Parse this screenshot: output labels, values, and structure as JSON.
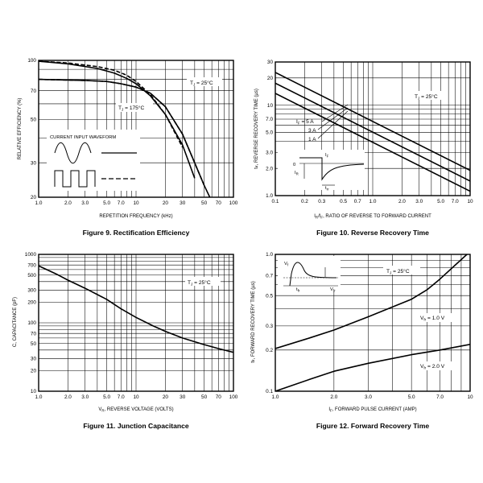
{
  "charts": [
    {
      "caption": "Figure 9. Rectification Efficiency",
      "chart_data": {
        "type": "line",
        "xlabel": "REPETITION FREQUENCY (kHz)",
        "ylabel": "RELATIVE EFFICIENCY (%)",
        "xscale": "log",
        "yscale": "log",
        "xlim": [
          1,
          100
        ],
        "ylim": [
          20,
          100
        ],
        "xticks": [
          1,
          2,
          3,
          5,
          7,
          10,
          20,
          30,
          50,
          70,
          100
        ],
        "xtick_labels": [
          "1.0",
          "2.0",
          "3.0",
          "5.0",
          "7.0",
          "10",
          "20",
          "30",
          "50",
          "70",
          "100"
        ],
        "yticks": [
          20,
          30,
          50,
          70,
          100
        ],
        "ytick_labels": [
          "20",
          "30",
          "50",
          "70",
          "100"
        ],
        "grid": true,
        "annotations": {
          "tj1": "T",
          "tj1_sub": "J",
          "tj1_rest": " = 25°C",
          "tj2": "T",
          "tj2_sub": "J",
          "tj2_rest": " = 175°C",
          "waveform": "CURRENT INPUT WAVEFORM"
        },
        "series": [
          {
            "style": "solid",
            "x": [
              1,
              3,
              5,
              7,
              10,
              14,
              20,
              30,
              40,
              50,
              60
            ],
            "y": [
              80,
              79,
              78,
              76,
              73,
              68,
              58,
              42,
              30,
              23,
              19
            ]
          },
          {
            "style": "dashed",
            "x": [
              1,
              3,
              5,
              7,
              10,
              14,
              20,
              30,
              40,
              50
            ],
            "y": [
              80,
              79,
              78,
              76,
              73,
              68,
              58,
              42,
              30,
              23
            ]
          },
          {
            "style": "solid",
            "x": [
              1,
              2,
              4,
              6,
              8,
              10,
              14,
              20,
              30,
              40
            ],
            "y": [
              99,
              96,
              91,
              86,
              81,
              76,
              66,
              53,
              37,
              25
            ]
          },
          {
            "style": "dashed",
            "x": [
              1,
              2,
              4,
              6,
              8,
              10,
              14,
              20,
              30
            ],
            "y": [
              99,
              97,
              93,
              89,
              84,
              78,
              67,
              53,
              36
            ]
          }
        ]
      }
    },
    {
      "caption": "Figure 10. Reverse Recovery Time",
      "chart_data": {
        "type": "line",
        "xlabel_main": "I",
        "xlabel_sub": "R",
        "xlabel_slash": "/I",
        "xlabel_sub2": "F",
        "xlabel_rest": ", RATIO OF REVERSE TO FORWARD CURRENT",
        "ylabel_main": "t",
        "ylabel_sub": "rr",
        "ylabel_rest": ", REVERSE RECOVERY TIME (µs)",
        "xscale": "log",
        "yscale": "log",
        "xlim": [
          0.1,
          10
        ],
        "ylim": [
          1,
          30
        ],
        "xticks": [
          0.1,
          0.2,
          0.3,
          0.5,
          0.7,
          1,
          2,
          3,
          5,
          7,
          10
        ],
        "xtick_labels": [
          "0.1",
          "0.2",
          "0.3",
          "0.5",
          "0.7",
          "1.0",
          "2.0",
          "3.0",
          "5.0",
          "7.0",
          "10"
        ],
        "yticks": [
          1,
          2,
          3,
          5,
          7,
          10,
          20,
          30
        ],
        "ytick_labels": [
          "1.0",
          "2.0",
          "3.0",
          "5.0",
          "7.0",
          "10",
          "20",
          "30"
        ],
        "grid": true,
        "annotations": {
          "tj": "T",
          "tj_sub": "J",
          "tj_rest": " = 25°C",
          "if5_main": "I",
          "if5_sub": "F",
          "if5_rest": " = 5 A",
          "if3": "3 A",
          "if1": "1 A",
          "inset_if": "I",
          "inset_if_sub": "F",
          "inset_ir": "I",
          "inset_ir_sub": "R",
          "inset_zero": "0",
          "inset_trr": "t",
          "inset_trr_sub": "rr"
        },
        "series": [
          {
            "name": "IF = 5 A",
            "x": [
              0.1,
              10
            ],
            "y": [
              23,
              1.9
            ]
          },
          {
            "name": "3 A",
            "x": [
              0.1,
              10
            ],
            "y": [
              17.5,
              1.45
            ]
          },
          {
            "name": "1 A",
            "x": [
              0.1,
              10
            ],
            "y": [
              13.5,
              1.12
            ]
          }
        ]
      }
    },
    {
      "caption": "Figure 11. Junction Capacitance",
      "chart_data": {
        "type": "line",
        "xlabel_main": "V",
        "xlabel_sub": "R",
        "xlabel_rest": ", REVERSE VOLTAGE (VOLTS)",
        "ylabel": "C, CAPACITANCE (pF)",
        "xscale": "log",
        "yscale": "log",
        "xlim": [
          1,
          100
        ],
        "ylim": [
          10,
          1000
        ],
        "xticks": [
          1,
          2,
          3,
          5,
          7,
          10,
          20,
          30,
          50,
          70,
          100
        ],
        "xtick_labels": [
          "1.0",
          "2.0",
          "3.0",
          "5.0",
          "7.0",
          "10",
          "20",
          "30",
          "50",
          "70",
          "100"
        ],
        "yticks": [
          10,
          20,
          30,
          50,
          70,
          100,
          200,
          300,
          500,
          700,
          1000
        ],
        "ytick_labels": [
          "10",
          "20",
          "30",
          "50",
          "70",
          "100",
          "200",
          "300",
          "500",
          "700",
          "1000"
        ],
        "grid": true,
        "annotations": {
          "tj": "T",
          "tj_sub": "J",
          "tj_rest": " = 25°C"
        },
        "series": [
          {
            "x": [
              1,
              1.5,
              2,
              3,
              5,
              7,
              10,
              15,
              20,
              30,
              50,
              70,
              100
            ],
            "y": [
              680,
              520,
              420,
              320,
              220,
              160,
              120,
              90,
              75,
              60,
              48,
              42,
              37
            ]
          }
        ]
      }
    },
    {
      "caption": "Figure 12. Forward Recovery Time",
      "chart_data": {
        "type": "line",
        "xlabel_main": "I",
        "xlabel_sub": "F",
        "xlabel_rest": ", FORWARD PULSE CURRENT (AMP)",
        "ylabel_main": "t",
        "ylabel_sub": "fr",
        "ylabel_rest": ", FORWARD RECOVERY TIME (µs)",
        "xscale": "log",
        "yscale": "log",
        "xlim": [
          1,
          10
        ],
        "ylim": [
          0.1,
          1.0
        ],
        "xticks": [
          1,
          2,
          3,
          5,
          7,
          10
        ],
        "xtick_labels": [
          "1.0",
          "2.0",
          "3.0",
          "5.0",
          "7.0",
          "10"
        ],
        "yticks": [
          0.1,
          0.2,
          0.3,
          0.5,
          0.7,
          1.0
        ],
        "ytick_labels": [
          "0.1",
          "0.2",
          "0.3",
          "0.5",
          "0.7",
          "1.0"
        ],
        "grid": true,
        "annotations": {
          "tj": "T",
          "tj_sub": "J",
          "tj_rest": " = 25°C",
          "vfr1_main": "V",
          "vfr1_sub": "fr",
          "vfr1_rest": " = 1.0 V",
          "vfr2_main": "V",
          "vfr2_sub": "fr",
          "vfr2_rest": " = 2.0 V",
          "inset_vf": "V",
          "inset_vf_sub": "f",
          "inset_vfr": "V",
          "inset_vfr_sub": "fr",
          "inset_tfr": "t",
          "inset_tfr_sub": "fr"
        },
        "series": [
          {
            "name": "Vfr = 1.0 V",
            "x": [
              1,
              1.5,
              2,
              3,
              5,
              6,
              7,
              8.5,
              10
            ],
            "y": [
              0.205,
              0.245,
              0.28,
              0.35,
              0.47,
              0.55,
              0.66,
              0.85,
              1.05
            ]
          },
          {
            "name": "Vfr = 2.0 V",
            "x": [
              1,
              1.5,
              2,
              3,
              5,
              7,
              10
            ],
            "y": [
              0.1,
              0.122,
              0.14,
              0.16,
              0.185,
              0.2,
              0.22
            ]
          }
        ]
      }
    }
  ]
}
